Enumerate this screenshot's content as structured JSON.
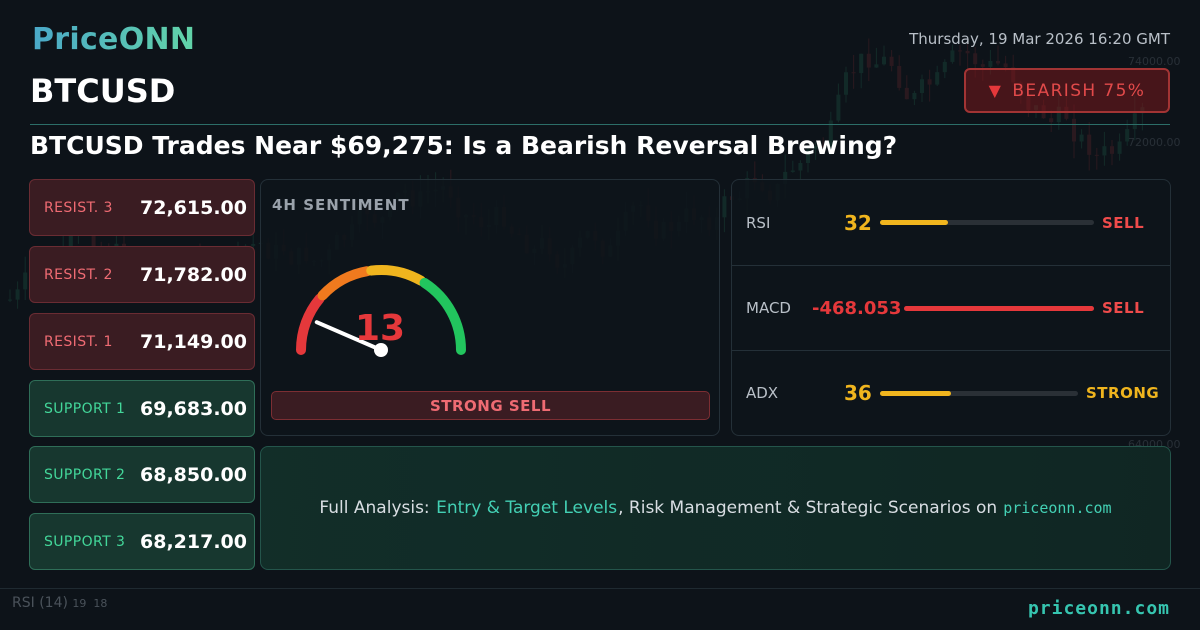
{
  "brand": {
    "logo": "PriceONN"
  },
  "datetime": "Thursday, 19 Mar 2026 16:20 GMT",
  "symbol": "BTCUSD",
  "badge": {
    "icon": "triangle-down-icon",
    "text": "BEARISH 75%",
    "color": "#e5383b"
  },
  "headline": "BTCUSD Trades Near $69,275: Is a Bearish Reversal Brewing?",
  "levels": [
    {
      "label": "RESIST. 3",
      "value": "72,615.00",
      "kind": "resistance"
    },
    {
      "label": "RESIST. 2",
      "value": "71,782.00",
      "kind": "resistance"
    },
    {
      "label": "RESIST. 1",
      "value": "71,149.00",
      "kind": "resistance"
    },
    {
      "label": "SUPPORT 1",
      "value": "69,683.00",
      "kind": "support"
    },
    {
      "label": "SUPPORT 2",
      "value": "68,850.00",
      "kind": "support"
    },
    {
      "label": "SUPPORT 3",
      "value": "68,217.00",
      "kind": "support"
    }
  ],
  "sentiment": {
    "title": "4H SENTIMENT",
    "score": "13",
    "score_value": 13,
    "score_max": 100,
    "label": "STRONG SELL"
  },
  "indicators": [
    {
      "name": "RSI",
      "value": "32",
      "signal": "SELL",
      "fill": 0.32,
      "color": "#f0b51e",
      "signal_color": "#ef4b4b"
    },
    {
      "name": "MACD",
      "value": "-468.053",
      "signal": "SELL",
      "fill": 1.0,
      "color": "#e5383b",
      "signal_color": "#ef4b4b"
    },
    {
      "name": "ADX",
      "value": "36",
      "signal": "STRONG",
      "fill": 0.36,
      "color": "#f0b51e",
      "signal_color": "#f0b51e"
    }
  ],
  "cta": {
    "prefix": "Full Analysis: ",
    "highlight": "Entry & Target Levels",
    "middle": ", Risk Management & Strategic Scenarios on",
    "site": "priceonn.com"
  },
  "background": {
    "rsi_label": "RSI",
    "rsi_period": "(14)",
    "rsi_values": "19  18",
    "price_ticks": [
      "74000.00",
      "72000.00",
      "64000.00"
    ]
  },
  "footer": {
    "site": "priceonn.com"
  },
  "colors": {
    "resistance": "#ef6b73",
    "support": "#43d79a",
    "accent": "#36c5b0",
    "bearish": "#e5383b"
  }
}
